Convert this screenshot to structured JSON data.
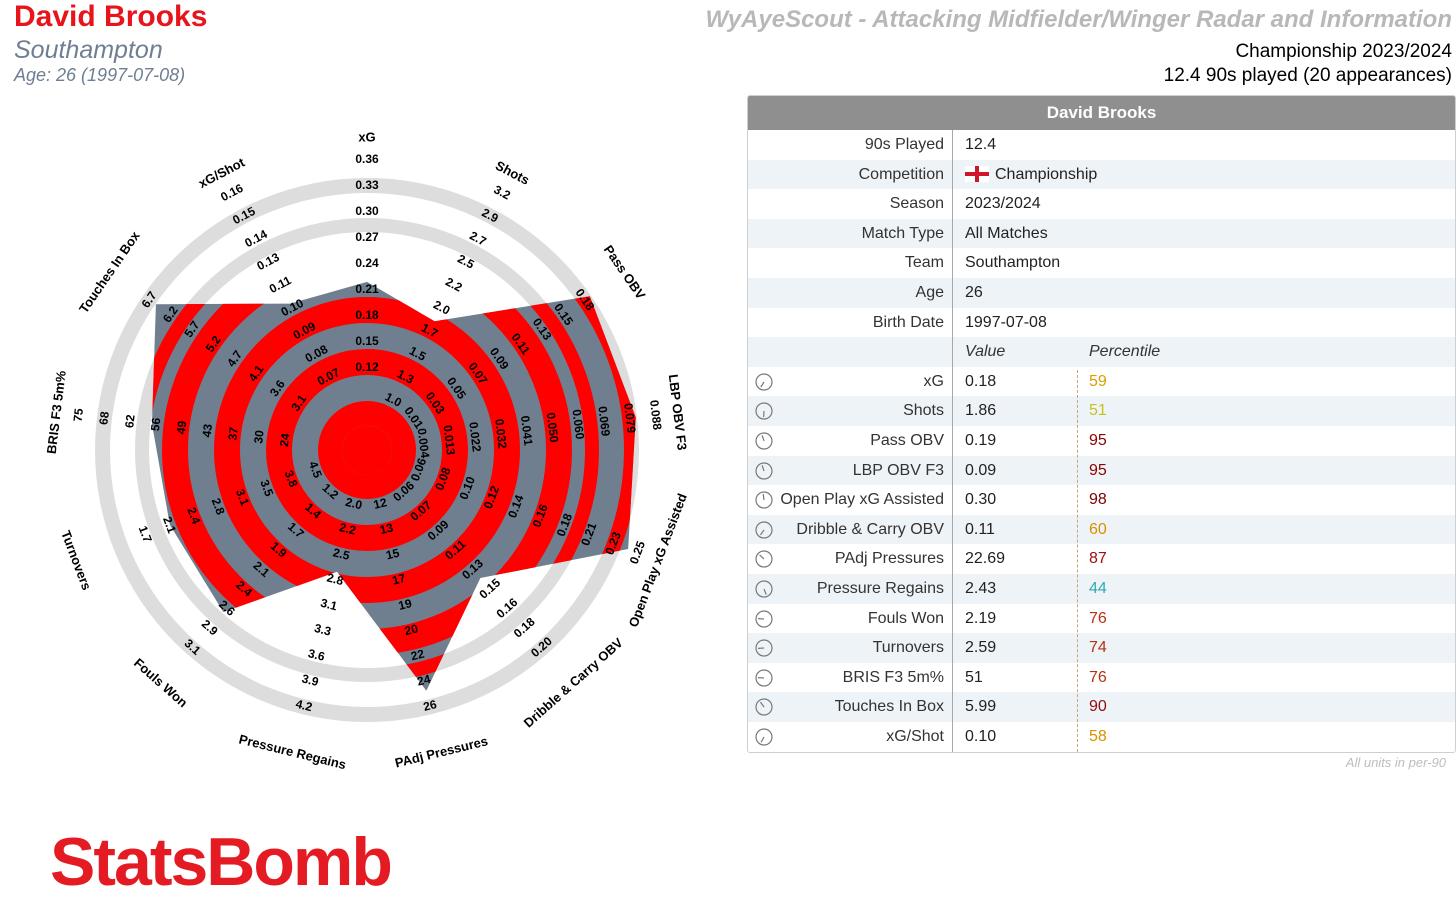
{
  "header": {
    "player_name": "David Brooks",
    "team": "Southampton",
    "age_line": "Age: 26 (1997-07-08)",
    "report_title": "WyAyeScout - Attacking Midfielder/Winger Radar and Information",
    "competition_line": "Championship 2023/2024",
    "played_line": "12.4 90s played (20 appearances)"
  },
  "colors": {
    "brand_red": "#e8141b",
    "ring_red": "#ff0000",
    "ring_grey": "#6f7f8f",
    "outer_ring": "#dddddd",
    "polygon": "#6f7f8f"
  },
  "chart_data": {
    "type": "radar",
    "axes": [
      {
        "name": "xG",
        "value": 0.18,
        "percentile": 59,
        "ticks": [
          "0.12",
          "0.15",
          "0.18",
          "0.21",
          "0.24",
          "0.27",
          "0.30",
          "0.33",
          "0.36"
        ]
      },
      {
        "name": "Shots",
        "value": 1.86,
        "percentile": 51,
        "ticks": [
          "1.3",
          "1.5",
          "1.7",
          "2.0",
          "2.2",
          "2.5",
          "2.7",
          "2.9",
          "3.2"
        ]
      },
      {
        "name": "Pass OBV",
        "value": 0.19,
        "percentile": 95,
        "ticks": [
          "0.03",
          "0.05",
          "0.07",
          "0.09",
          "0.11",
          "0.13",
          "0.15",
          "0.18"
        ]
      },
      {
        "name": "LBP OBV F3",
        "value": 0.09,
        "percentile": 95,
        "ticks": [
          "0.013",
          "0.022",
          "0.032",
          "0.041",
          "0.050",
          "0.060",
          "0.069",
          "0.079",
          "0.088"
        ]
      },
      {
        "name": "Open Play xG Assisted",
        "value": 0.3,
        "percentile": 98,
        "ticks": [
          "0.08",
          "0.10",
          "0.12",
          "0.14",
          "0.16",
          "0.18",
          "0.21",
          "0.23",
          "0.25"
        ]
      },
      {
        "name": "Dribble & Carry OBV",
        "value": 0.11,
        "percentile": 60,
        "ticks": [
          "0.07",
          "0.09",
          "0.11",
          "0.13",
          "0.15",
          "0.16",
          "0.18",
          "0.20"
        ]
      },
      {
        "name": "PAdj Pressures",
        "value": 22.69,
        "percentile": 87,
        "ticks": [
          "13",
          "15",
          "17",
          "19",
          "20",
          "22",
          "24",
          "26"
        ]
      },
      {
        "name": "Pressure Regains",
        "value": 2.43,
        "percentile": 44,
        "ticks": [
          "2.2",
          "2.5",
          "2.8",
          "3.1",
          "3.3",
          "3.6",
          "3.9",
          "4.2"
        ]
      },
      {
        "name": "Fouls Won",
        "value": 2.19,
        "percentile": 76,
        "ticks": [
          "1.4",
          "1.7",
          "1.9",
          "2.1",
          "2.4",
          "2.6",
          "2.9",
          "3.1"
        ]
      },
      {
        "name": "Turnovers",
        "value": 2.59,
        "percentile": 74,
        "ticks": [
          "3.8",
          "3.5",
          "3.1",
          "2.8",
          "2.4",
          "2.1",
          "1.7"
        ]
      },
      {
        "name": "BRIS F3 5m%",
        "value": 51,
        "percentile": 76,
        "ticks": [
          "24",
          "30",
          "37",
          "43",
          "49",
          "56",
          "62",
          "68",
          "75"
        ]
      },
      {
        "name": "Touches In Box",
        "value": 5.99,
        "percentile": 90,
        "ticks": [
          "3.1",
          "3.6",
          "4.1",
          "4.7",
          "5.2",
          "5.7",
          "6.2",
          "6.7"
        ]
      },
      {
        "name": "xG/Shot",
        "value": 0.1,
        "percentile": 58,
        "ticks": [
          "0.07",
          "0.08",
          "0.09",
          "0.10",
          "0.11",
          "0.13",
          "0.14",
          "0.15",
          "0.16"
        ]
      }
    ],
    "inner_ticks": [
      {
        "axis": "Shots",
        "ticks": [
          "1.0"
        ]
      },
      {
        "axis": "LBP OBV F3",
        "ticks": [
          "0.004"
        ]
      },
      {
        "axis": "Open Play xG Assisted",
        "ticks": [
          "0.06"
        ]
      },
      {
        "axis": "Dribble & Carry OBV",
        "ticks": [
          "0.06"
        ]
      },
      {
        "axis": "PAdj Pressures",
        "ticks": [
          "12"
        ]
      },
      {
        "axis": "Pressure Regains",
        "ticks": [
          "2.0"
        ]
      },
      {
        "axis": "Fouls Won",
        "ticks": [
          "1.2"
        ]
      },
      {
        "axis": "Turnovers",
        "ticks": [
          "4.5"
        ]
      },
      {
        "axis": "Pass OBV",
        "ticks": [
          "0.01"
        ]
      }
    ]
  },
  "table": {
    "header": "David Brooks",
    "info_rows": [
      {
        "label": "90s Played",
        "value": "12.4"
      },
      {
        "label": "Competition",
        "value": "Championship",
        "flag": "england"
      },
      {
        "label": "Season",
        "value": "2023/2024"
      },
      {
        "label": "Match Type",
        "value": "All Matches"
      },
      {
        "label": "Team",
        "value": "Southampton"
      },
      {
        "label": "Age",
        "value": "26"
      },
      {
        "label": "Birth Date",
        "value": "1997-07-08"
      }
    ],
    "value_header": "Value",
    "percentile_header": "Percentile",
    "metric_rows": [
      {
        "label": "xG",
        "value": "0.18",
        "percentile": "59",
        "color": "#d9a000",
        "icon": "clock-icon"
      },
      {
        "label": "Shots",
        "value": "1.86",
        "percentile": "51",
        "color": "#c8c020",
        "icon": "clock-icon"
      },
      {
        "label": "Pass OBV",
        "value": "0.19",
        "percentile": "95",
        "color": "#8b0000",
        "icon": "clock-icon"
      },
      {
        "label": "LBP OBV F3",
        "value": "0.09",
        "percentile": "95",
        "color": "#8b0000",
        "icon": "clock-icon"
      },
      {
        "label": "Open Play xG Assisted",
        "value": "0.30",
        "percentile": "98",
        "color": "#7a0000",
        "icon": "clock-icon"
      },
      {
        "label": "Dribble & Carry OBV",
        "value": "0.11",
        "percentile": "60",
        "color": "#d99000",
        "icon": "clock-icon"
      },
      {
        "label": "PAdj Pressures",
        "value": "22.69",
        "percentile": "87",
        "color": "#a01010",
        "icon": "clock-icon"
      },
      {
        "label": "Pressure Regains",
        "value": "2.43",
        "percentile": "44",
        "color": "#30a8b0",
        "icon": "clock-icon"
      },
      {
        "label": "Fouls Won",
        "value": "2.19",
        "percentile": "76",
        "color": "#b83010",
        "icon": "clock-icon"
      },
      {
        "label": "Turnovers",
        "value": "2.59",
        "percentile": "74",
        "color": "#b83010",
        "icon": "clock-icon"
      },
      {
        "label": "BRIS F3 5m%",
        "value": "51",
        "percentile": "76",
        "color": "#b83010",
        "icon": "clock-icon"
      },
      {
        "label": "Touches In Box",
        "value": "5.99",
        "percentile": "90",
        "color": "#901010",
        "icon": "clock-icon"
      },
      {
        "label": "xG/Shot",
        "value": "0.10",
        "percentile": "58",
        "color": "#d99000",
        "icon": "clock-icon"
      }
    ]
  },
  "footer": {
    "units_note": "All units in per-90",
    "logo_text": "StatsBomb"
  }
}
